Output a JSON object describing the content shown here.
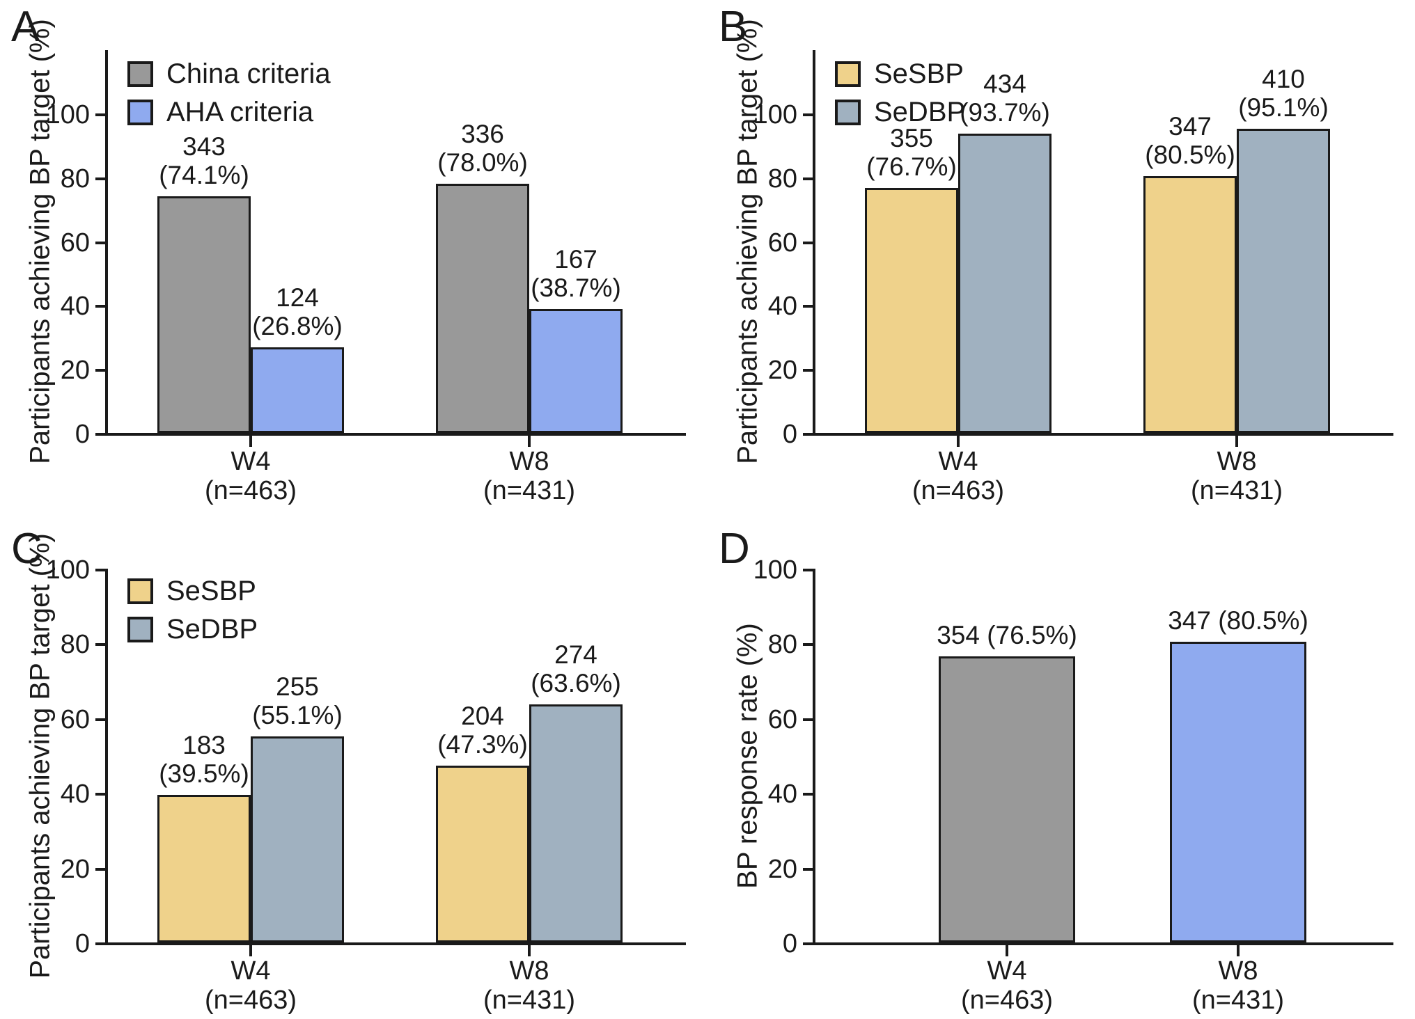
{
  "figure": {
    "background": "#ffffff",
    "text_color": "#1a1a1a",
    "axis_color": "#1a1a1a",
    "bar_border_color": "#1a1a1a"
  },
  "chart_data": [
    {
      "panel_letter": "A",
      "type": "bar",
      "ylabel": "Participants achieving BP target (%)",
      "ylim": [
        0,
        100
      ],
      "yticks": [
        0,
        20,
        40,
        60,
        80,
        100
      ],
      "grid": false,
      "axis_headroom": true,
      "has_legend": true,
      "legend_position": "top-left",
      "categories": [
        [
          "W4",
          "(n=463)"
        ],
        [
          "W8",
          "(n=431)"
        ]
      ],
      "series": [
        {
          "name": "China criteria",
          "color": "#999999",
          "values": [
            74.1,
            78.0
          ],
          "labels": [
            [
              "343",
              "(74.1%)"
            ],
            [
              "336",
              "(78.0%)"
            ]
          ]
        },
        {
          "name": "AHA criteria",
          "color": "#8FAAEF",
          "values": [
            26.8,
            38.7
          ],
          "labels": [
            [
              "124",
              "(26.8%)"
            ],
            [
              "167",
              "(38.7%)"
            ]
          ]
        }
      ]
    },
    {
      "panel_letter": "B",
      "type": "bar",
      "ylabel": "Participants achieving BP target (%)",
      "ylim": [
        0,
        100
      ],
      "yticks": [
        0,
        20,
        40,
        60,
        80,
        100
      ],
      "grid": false,
      "axis_headroom": true,
      "has_legend": true,
      "legend_position": "top-left",
      "categories": [
        [
          "W4",
          "(n=463)"
        ],
        [
          "W8",
          "(n=431)"
        ]
      ],
      "series": [
        {
          "name": "SeSBP",
          "color": "#EFD28B",
          "values": [
            76.7,
            80.5
          ],
          "labels": [
            [
              "355",
              "(76.7%)"
            ],
            [
              "347",
              "(80.5%)"
            ]
          ]
        },
        {
          "name": "SeDBP",
          "color": "#A0B1C0",
          "values": [
            93.7,
            95.1
          ],
          "labels": [
            [
              "434",
              "(93.7%)"
            ],
            [
              "410",
              "(95.1%)"
            ]
          ]
        }
      ]
    },
    {
      "panel_letter": "C",
      "type": "bar",
      "ylabel": "Participants achieving BP target (%)",
      "ylim": [
        0,
        100
      ],
      "yticks": [
        0,
        20,
        40,
        60,
        80,
        100
      ],
      "grid": false,
      "axis_headroom": false,
      "has_legend": true,
      "legend_position": "top-left",
      "categories": [
        [
          "W4",
          "(n=463)"
        ],
        [
          "W8",
          "(n=431)"
        ]
      ],
      "series": [
        {
          "name": "SeSBP",
          "color": "#EFD28B",
          "values": [
            39.5,
            47.3
          ],
          "labels": [
            [
              "183",
              "(39.5%)"
            ],
            [
              "204",
              "(47.3%)"
            ]
          ]
        },
        {
          "name": "SeDBP",
          "color": "#A0B1C0",
          "values": [
            55.1,
            63.6
          ],
          "labels": [
            [
              "255",
              "(55.1%)"
            ],
            [
              "274",
              "(63.6%)"
            ]
          ]
        }
      ]
    },
    {
      "panel_letter": "D",
      "type": "bar",
      "ylabel": "BP response rate (%)",
      "ylim": [
        0,
        100
      ],
      "yticks": [
        0,
        20,
        40,
        60,
        80,
        100
      ],
      "grid": false,
      "axis_headroom": false,
      "has_legend": false,
      "legend_position": "none",
      "categories": [
        [
          "W4",
          "(n=463)"
        ],
        [
          "W8",
          "(n=431)"
        ]
      ],
      "series": [
        {
          "name": "",
          "colors": [
            "#999999",
            "#8FAAEF"
          ],
          "values": [
            76.5,
            80.5
          ],
          "labels": [
            [
              "354 (76.5%)"
            ],
            [
              "347 (80.5%)"
            ]
          ]
        }
      ]
    }
  ]
}
